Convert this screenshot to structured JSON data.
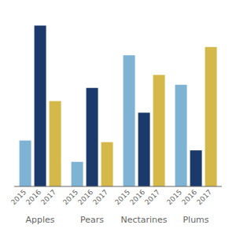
{
  "chart_data": {
    "type": "bar",
    "categories": [
      "Apples",
      "Pears",
      "Nectarines",
      "Plums"
    ],
    "series": [
      {
        "name": "2015",
        "color": "#7fb3d3",
        "values": [
          0.28,
          0.15,
          0.8,
          0.62
        ]
      },
      {
        "name": "2016",
        "color": "#1b3a6b",
        "values": [
          0.98,
          0.6,
          0.45,
          0.22
        ]
      },
      {
        "name": "2017",
        "color": "#d4b84a",
        "values": [
          0.52,
          0.27,
          0.68,
          0.85
        ]
      }
    ],
    "ylim": [
      0,
      1.05
    ],
    "grid": false,
    "tick_labels": "x"
  }
}
